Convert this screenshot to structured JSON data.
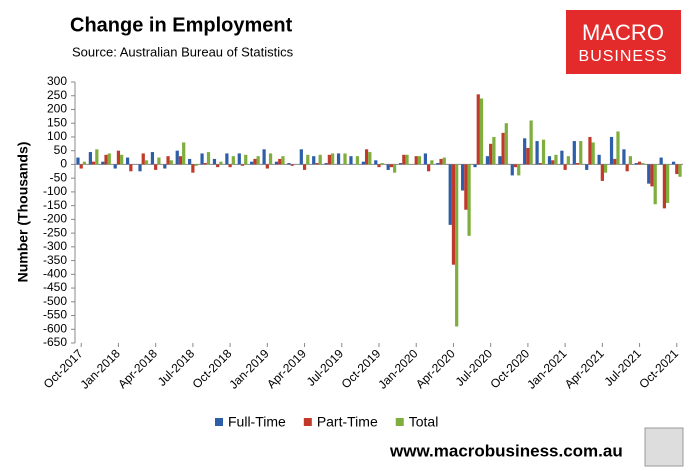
{
  "chart_data": {
    "type": "bar",
    "title": "Change in Employment",
    "subtitle": "Source: Australian Bureau of Statistics",
    "y_label": "Number (Thousands)",
    "logo": [
      "MACRO",
      "BUSINESS"
    ],
    "footer": "www.macrobusiness.com.au",
    "categories": [
      "Oct-2017",
      null,
      null,
      "Jan-2018",
      null,
      null,
      "Apr-2018",
      null,
      null,
      "Jul-2018",
      null,
      null,
      "Oct-2018",
      null,
      null,
      "Jan-2019",
      null,
      null,
      "Apr-2019",
      null,
      null,
      "Jul-2019",
      null,
      null,
      "Oct-2019",
      null,
      null,
      "Jan-2020",
      null,
      null,
      "Apr-2020",
      null,
      null,
      "Jul-2020",
      null,
      null,
      "Oct-2020",
      null,
      null,
      "Jan-2021",
      null,
      null,
      "Apr-2021",
      null,
      null,
      "Jul-2021",
      null,
      null,
      "Oct-2021"
    ],
    "series": [
      {
        "name": "Full-Time",
        "color": "#2f5ea8",
        "values": [
          25,
          45,
          10,
          -15,
          25,
          -25,
          45,
          -15,
          50,
          20,
          40,
          20,
          40,
          40,
          10,
          55,
          10,
          5,
          55,
          30,
          5,
          40,
          30,
          10,
          15,
          -20,
          5,
          0,
          40,
          5,
          -220,
          -95,
          -10,
          30,
          30,
          -40,
          95,
          85,
          30,
          50,
          85,
          -20,
          35,
          100,
          55,
          5,
          -70,
          25,
          10
        ]
      },
      {
        "name": "Part-Time",
        "color": "#c0392b",
        "values": [
          -15,
          10,
          35,
          50,
          -25,
          40,
          -20,
          30,
          30,
          -30,
          5,
          -10,
          -10,
          -5,
          20,
          -15,
          20,
          -5,
          -20,
          5,
          35,
          0,
          0,
          55,
          -10,
          -10,
          35,
          30,
          -25,
          20,
          -365,
          -165,
          255,
          75,
          115,
          -10,
          60,
          5,
          15,
          -20,
          5,
          100,
          -60,
          20,
          -25,
          10,
          -80,
          -160,
          -35
        ]
      },
      {
        "name": "Total",
        "color": "#7fae3e",
        "values": [
          10,
          55,
          40,
          35,
          0,
          15,
          25,
          15,
          80,
          -5,
          45,
          10,
          30,
          35,
          30,
          40,
          30,
          0,
          35,
          35,
          40,
          40,
          30,
          45,
          5,
          -30,
          35,
          30,
          15,
          25,
          -590,
          -260,
          240,
          100,
          150,
          -40,
          160,
          90,
          35,
          30,
          85,
          80,
          -30,
          120,
          30,
          5,
          -145,
          -140,
          -45
        ]
      }
    ],
    "ylim": [
      -650,
      300
    ],
    "yticks": [
      300,
      250,
      200,
      150,
      100,
      50,
      0,
      -50,
      -100,
      -150,
      -200,
      -250,
      -300,
      -350,
      -400,
      -450,
      -500,
      -550,
      -600,
      -650
    ],
    "grid": false,
    "legend": "bottom"
  }
}
